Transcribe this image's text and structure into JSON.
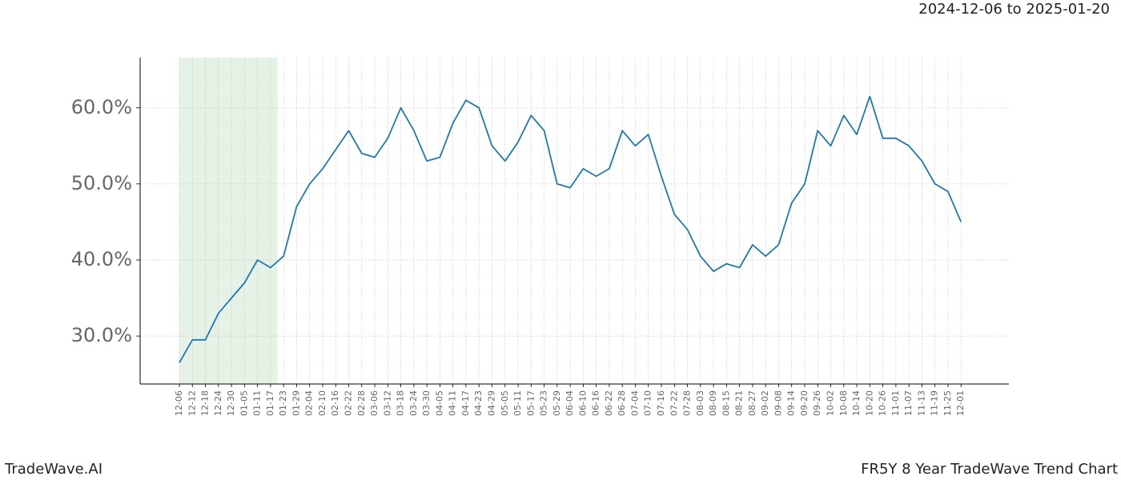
{
  "chart_data": {
    "type": "line",
    "title": "2024-12-06 to 2025-01-20",
    "footer_left": "TradeWave.AI",
    "footer_right": "FR5Y 8 Year TradeWave Trend Chart",
    "categories": [
      "12-06",
      "12-12",
      "12-18",
      "12-24",
      "12-30",
      "01-05",
      "01-11",
      "01-17",
      "01-23",
      "01-29",
      "02-04",
      "02-10",
      "02-16",
      "02-22",
      "02-28",
      "03-06",
      "03-12",
      "03-18",
      "03-24",
      "03-30",
      "04-05",
      "04-11",
      "04-17",
      "04-23",
      "04-29",
      "05-05",
      "05-11",
      "05-17",
      "05-23",
      "05-29",
      "06-04",
      "06-10",
      "06-16",
      "06-22",
      "06-28",
      "07-04",
      "07-10",
      "07-16",
      "07-22",
      "07-28",
      "08-03",
      "08-09",
      "08-15",
      "08-21",
      "08-27",
      "09-02",
      "09-08",
      "09-14",
      "09-20",
      "09-26",
      "10-02",
      "10-08",
      "10-14",
      "10-20",
      "10-26",
      "11-01",
      "11-07",
      "11-13",
      "11-19",
      "11-25",
      "12-01"
    ],
    "series": [
      {
        "color": "#1f77b4",
        "values": [
          26.5,
          29.5,
          29.5,
          33,
          35,
          37,
          40,
          39,
          40.5,
          47,
          50,
          52,
          54.5,
          57,
          54,
          53.5,
          56,
          60,
          57,
          53,
          53.5,
          58,
          61,
          60,
          55,
          53,
          55.5,
          59,
          57,
          50,
          49.5,
          52,
          51,
          52,
          57,
          55,
          56.5,
          51,
          46,
          44,
          40.5,
          38.5,
          39.5,
          39,
          42,
          40.5,
          42,
          47.5,
          50,
          57,
          55,
          59,
          56.5,
          61.5,
          56,
          56,
          55,
          53,
          50,
          49,
          45
        ]
      }
    ],
    "ylim": [
      23.7,
      66.6
    ],
    "yticks": [
      {
        "value": 30,
        "label": "30.0%"
      },
      {
        "value": 40,
        "label": "40.0%"
      },
      {
        "value": 50,
        "label": "50.0%"
      },
      {
        "value": 60,
        "label": "60.0%"
      }
    ],
    "grid": true,
    "highlight_color": "#e6f2e6"
  }
}
